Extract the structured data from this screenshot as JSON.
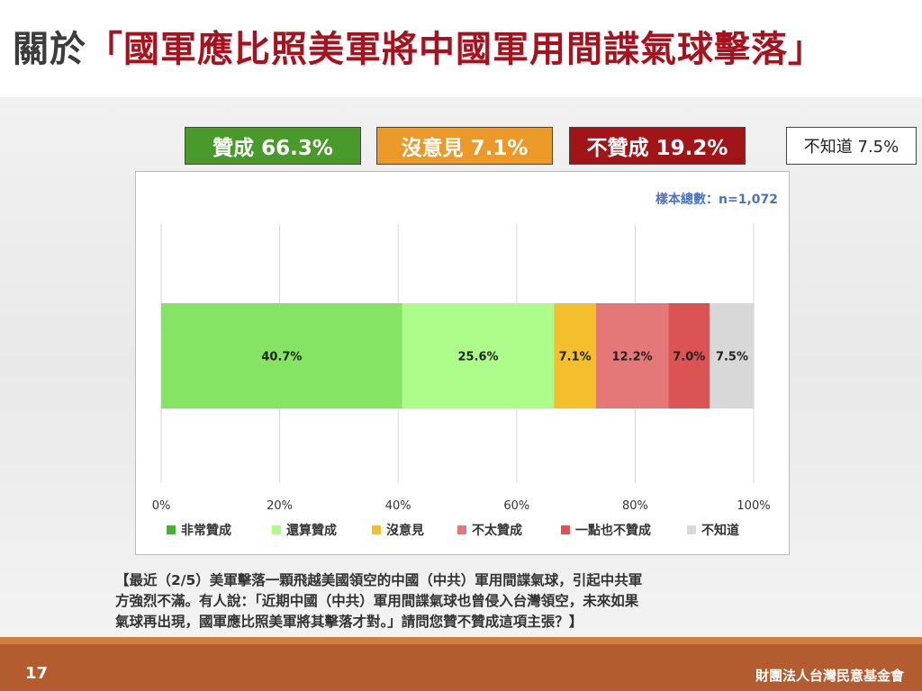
{
  "title": {
    "prefix": "關於",
    "main": "「國軍應比照美軍將中國軍用間諜氣球擊落」"
  },
  "summary": {
    "agree": "贊成 66.3%",
    "neutral": "沒意見 7.1%",
    "disagree": "不贊成 19.2%",
    "unknown": "不知道 7.5%"
  },
  "sample_size": "樣本總數：n=1,072",
  "chart_data": {
    "type": "bar",
    "orientation": "horizontal-stacked",
    "xlim": [
      0,
      100
    ],
    "x_ticks": [
      "0%",
      "20%",
      "40%",
      "60%",
      "80%",
      "100%"
    ],
    "grid": true,
    "legend_position": "bottom",
    "series": [
      {
        "name": "非常贊成",
        "value": 40.7,
        "label": "40.7%",
        "color": "#86e464"
      },
      {
        "name": "還算贊成",
        "value": 25.6,
        "label": "25.6%",
        "color": "#adfc8a"
      },
      {
        "name": "沒意見",
        "value": 7.1,
        "label": "7.1%",
        "color": "#f3bf2d"
      },
      {
        "name": "不太贊成",
        "value": 12.2,
        "label": "12.2%",
        "color": "#e47777"
      },
      {
        "name": "一點也不贊成",
        "value": 7.0,
        "label": "7.0%",
        "color": "#dc5353"
      },
      {
        "name": "不知道",
        "value": 7.5,
        "label": "7.5%",
        "color": "#d8d8d8"
      }
    ],
    "legend_colors": [
      "#4ab031",
      "#adfc8a",
      "#f3bf2d",
      "#e47777",
      "#dc5353",
      "#d8d8d8"
    ]
  },
  "question": {
    "line1": "【最近（2/5）美軍擊落一顆飛越美國領空的中國（中共）軍用間諜氣球，引起中共軍",
    "line2": "方強烈不滿。有人說：「近期中國（中共）軍用間諜氣球也曾侵入台灣領空，未來如果",
    "line3": "氣球再出現，國軍應比照美軍將其擊落才對。」請問您贊不贊成這項主張？】"
  },
  "footer": {
    "page": "17",
    "org": "財團法人台灣民意基金會"
  }
}
